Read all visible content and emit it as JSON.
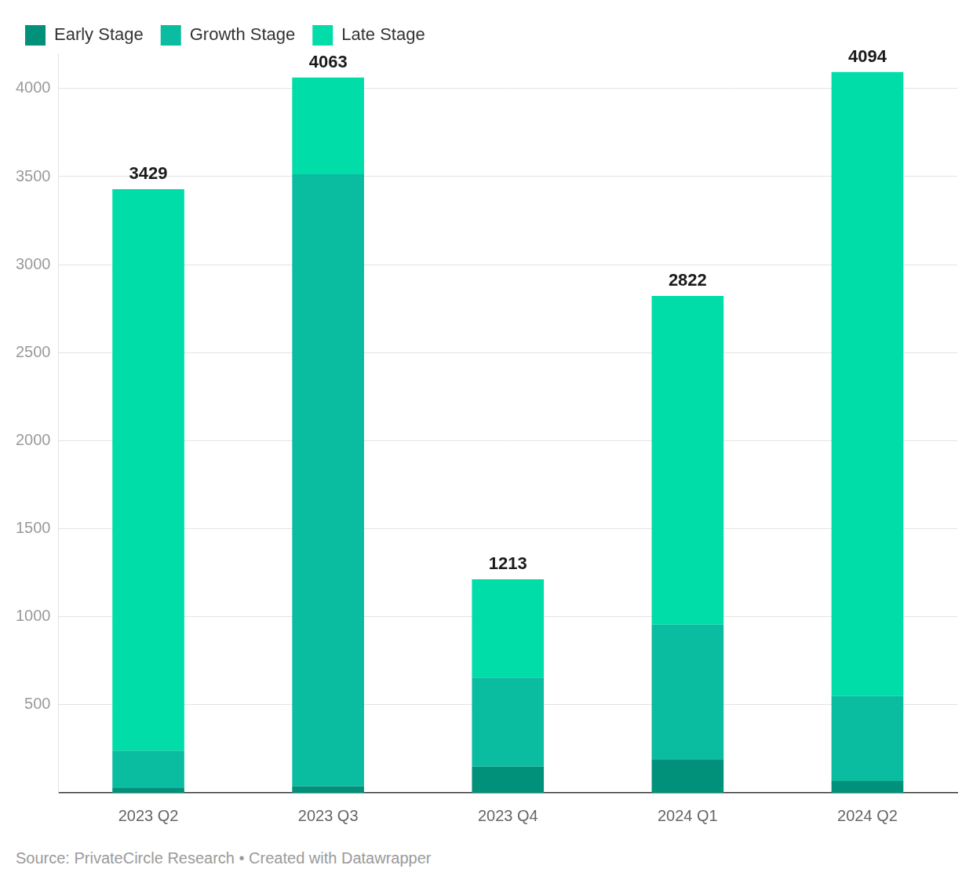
{
  "chart_data": {
    "type": "bar",
    "stacked": true,
    "categories": [
      "2023 Q2",
      "2023 Q3",
      "2023 Q4",
      "2024 Q1",
      "2024 Q2"
    ],
    "series": [
      {
        "name": "Early Stage",
        "color": "#01917a",
        "values": [
          30,
          38,
          148,
          191,
          67
        ]
      },
      {
        "name": "Growth Stage",
        "color": "#0abca0",
        "values": [
          210,
          3475,
          506,
          764,
          482
        ]
      },
      {
        "name": "Late Stage",
        "color": "#00dda8",
        "values": [
          3189,
          550,
          559,
          1867,
          3545
        ]
      }
    ],
    "totals": [
      3429,
      4063,
      1213,
      2822,
      4094
    ],
    "ylim": [
      0,
      4200
    ],
    "yticks": [
      500,
      1000,
      1500,
      2000,
      2500,
      3000,
      3500,
      4000
    ],
    "grid": true,
    "legend": "top-left",
    "source": "Source: PrivateCircle Research • Created with Datawrapper"
  }
}
